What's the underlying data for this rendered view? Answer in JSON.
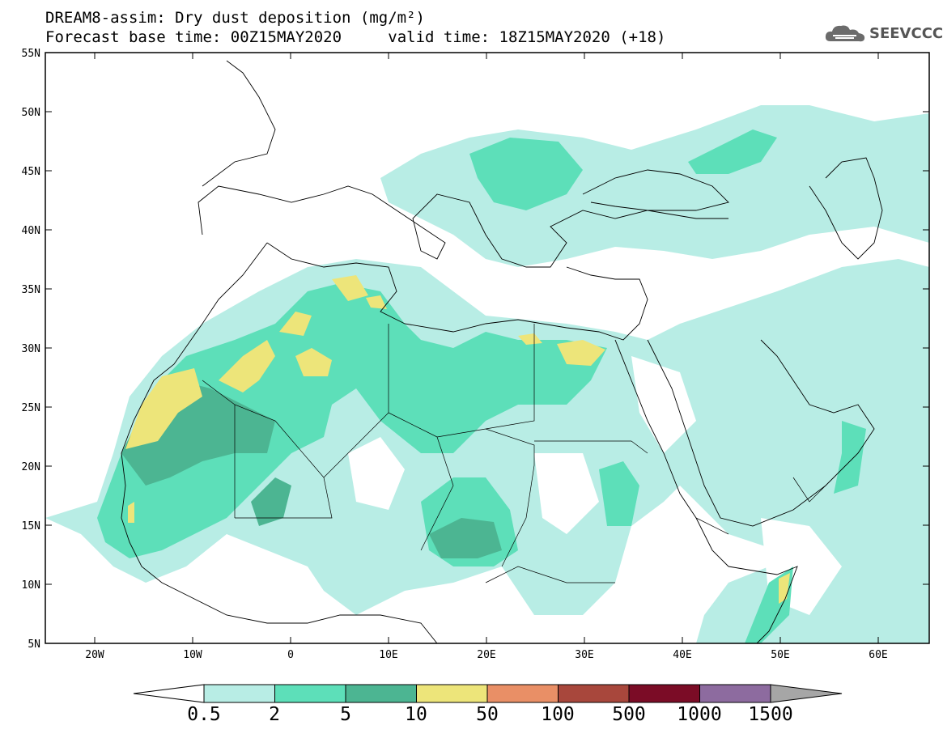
{
  "title": {
    "line1": "DREAM8-assim: Dry dust deposition (mg/m²)",
    "line2_base": "Forecast base time: 00Z15MAY2020",
    "line2_valid": "valid time: 18Z15MAY2020 (+18)"
  },
  "logo": {
    "text": "SEEVCCC",
    "icon": "cloud-icon"
  },
  "map": {
    "lat_labels": [
      "55N",
      "50N",
      "45N",
      "40N",
      "35N",
      "30N",
      "25N",
      "20N",
      "15N",
      "10N",
      "5N"
    ],
    "lon_labels": [
      "20W",
      "10W",
      "0",
      "10E",
      "20E",
      "30E",
      "40E",
      "50E",
      "60E"
    ],
    "extent": {
      "lon_min": -25,
      "lon_max": 65,
      "lat_min": 5,
      "lat_max": 55
    }
  },
  "legend": {
    "levels": [
      "0.5",
      "2",
      "5",
      "10",
      "50",
      "100",
      "500",
      "1000",
      "1500"
    ],
    "colors": [
      "#b8ede5",
      "#5ddfb9",
      "#4cb592",
      "#ede57a",
      "#e98f66",
      "#a8473c",
      "#7b0c26",
      "#8d6b9f",
      "#a6a6a6"
    ]
  }
}
